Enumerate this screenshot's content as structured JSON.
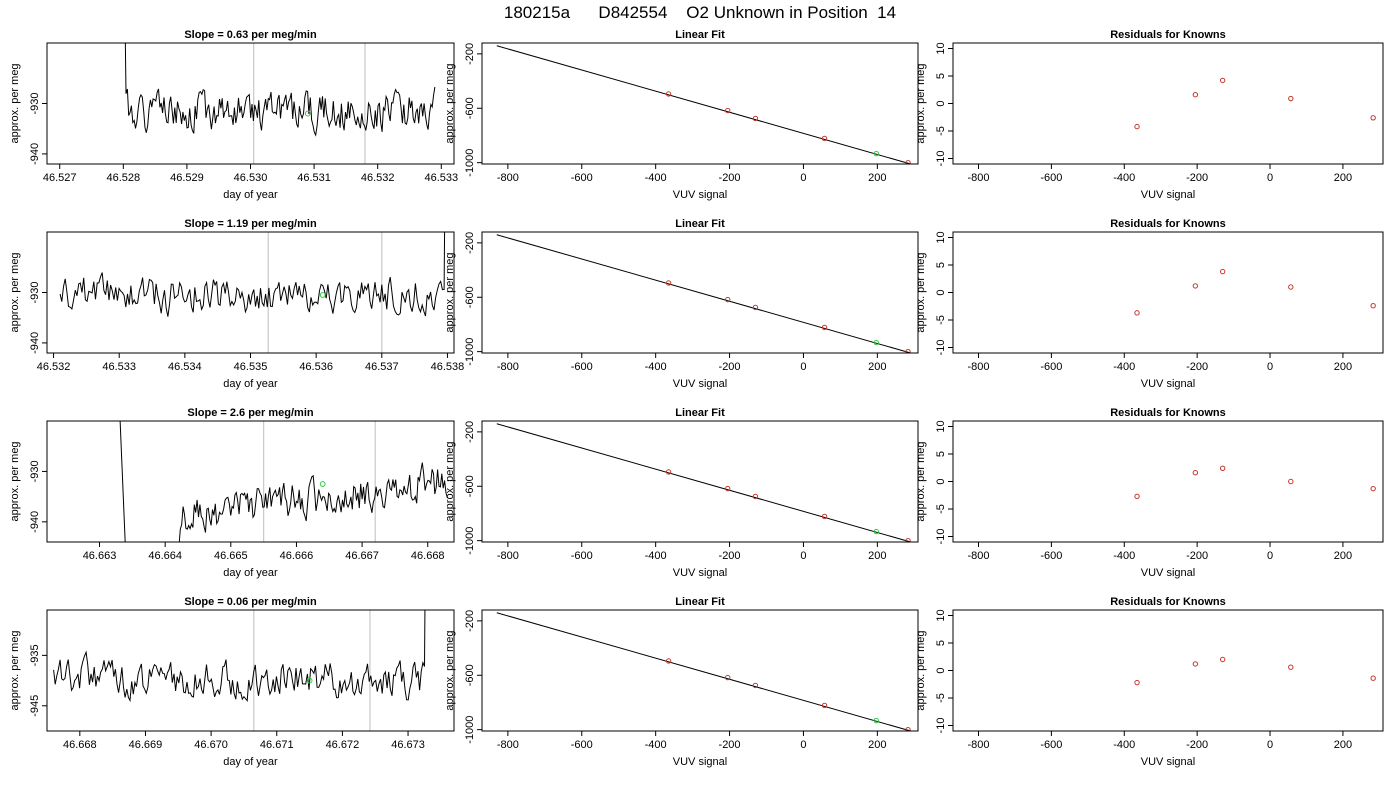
{
  "page_title": "180215a      D842554    O2 Unknown in Position  14",
  "colors": {
    "trace": "#000000",
    "grid_vline": "#c8c8c8",
    "known_point": "#c0392b",
    "unknown_point": "#2ecc40"
  },
  "chart_data": [
    {
      "type": "line",
      "row": 0,
      "col": 0,
      "title": "Slope =  0.63  per meg/min",
      "xlabel": "day of year",
      "ylabel": "approx. per meg",
      "xlim": [
        46.5268,
        46.5332
      ],
      "ylim": [
        -942,
        -918
      ],
      "xticks": [
        "46.527",
        "46.528",
        "46.529",
        "46.530",
        "46.531",
        "46.532",
        "46.533"
      ],
      "xtick_values": [
        46.527,
        46.528,
        46.529,
        46.53,
        46.531,
        46.532,
        46.533
      ],
      "yticks": [
        "-940",
        "-930"
      ],
      "ytick_values": [
        -940,
        -930
      ],
      "vlines": [
        46.53005,
        46.5318
      ],
      "trace": {
        "x_start": 46.528,
        "x_end": 46.5329,
        "base": -932,
        "amp": 4.5,
        "seed": 1,
        "trend": 0.8,
        "spike": "start"
      },
      "green_point": {
        "x": 46.5309,
        "y": -932
      }
    },
    {
      "type": "scatter",
      "row": 0,
      "col": 1,
      "title": "Linear Fit",
      "xlabel": "VUV signal",
      "ylabel": "approx. per meg",
      "xlim": [
        -870,
        310
      ],
      "ylim": [
        -1010,
        -120
      ],
      "xticks": [
        "-800",
        "-600",
        "-400",
        "-200",
        "0",
        "200"
      ],
      "xtick_values": [
        -800,
        -600,
        -400,
        -200,
        0,
        200
      ],
      "yticks": [
        "-1000",
        "-600",
        "-200"
      ],
      "ytick_values": [
        -1000,
        -600,
        -200
      ],
      "line": [
        [
          -830,
          -140
        ],
        [
          290,
          -1010
        ]
      ],
      "known_points": [
        [
          -365,
          -495
        ],
        [
          -205,
          -617
        ],
        [
          -130,
          -675
        ],
        [
          57,
          -822
        ],
        [
          283,
          -1000
        ]
      ],
      "unknown_points": [
        [
          197,
          -933
        ]
      ]
    },
    {
      "type": "scatter",
      "row": 0,
      "col": 2,
      "title": "Residuals for Knowns",
      "xlabel": "VUV signal",
      "ylabel": "approx. per meg",
      "xlim": [
        -870,
        310
      ],
      "ylim": [
        -11,
        11
      ],
      "xticks": [
        "-800",
        "-600",
        "-400",
        "-200",
        "0",
        "200"
      ],
      "xtick_values": [
        -800,
        -600,
        -400,
        -200,
        0,
        200
      ],
      "yticks": [
        "-10",
        "-5",
        "0",
        "5",
        "10"
      ],
      "ytick_values": [
        -10,
        -5,
        0,
        5,
        10
      ],
      "known_points": [
        [
          -365,
          -4.2
        ],
        [
          -205,
          1.6
        ],
        [
          -130,
          4.2
        ],
        [
          57,
          0.9
        ],
        [
          283,
          -2.6
        ]
      ]
    },
    {
      "type": "line",
      "row": 1,
      "col": 0,
      "title": "Slope =  1.19  per meg/min",
      "xlabel": "day of year",
      "ylabel": "approx. per meg",
      "xlim": [
        46.5319,
        46.5381
      ],
      "ylim": [
        -942,
        -918
      ],
      "xticks": [
        "46.532",
        "46.533",
        "46.534",
        "46.535",
        "46.536",
        "46.537",
        "46.538"
      ],
      "xtick_values": [
        46.532,
        46.533,
        46.534,
        46.535,
        46.536,
        46.537,
        46.538
      ],
      "yticks": [
        "-940",
        "-930"
      ],
      "ytick_values": [
        -940,
        -930
      ],
      "vlines": [
        46.53527,
        46.537
      ],
      "trace": {
        "x_start": 46.5321,
        "x_end": 46.538,
        "base": -930.5,
        "amp": 4.5,
        "seed": 2,
        "trend": 0.3,
        "spike": "end"
      },
      "green_point": {
        "x": 46.5361,
        "y": -930.5
      }
    },
    {
      "type": "scatter",
      "row": 1,
      "col": 1,
      "title": "Linear Fit",
      "xlabel": "VUV signal",
      "ylabel": "approx. per meg",
      "xlim": [
        -870,
        310
      ],
      "ylim": [
        -1010,
        -120
      ],
      "xticks": [
        "-800",
        "-600",
        "-400",
        "-200",
        "0",
        "200"
      ],
      "xtick_values": [
        -800,
        -600,
        -400,
        -200,
        0,
        200
      ],
      "yticks": [
        "-1000",
        "-600",
        "-200"
      ],
      "ytick_values": [
        -1000,
        -600,
        -200
      ],
      "line": [
        [
          -830,
          -140
        ],
        [
          290,
          -1010
        ]
      ],
      "known_points": [
        [
          -365,
          -495
        ],
        [
          -205,
          -617
        ],
        [
          -130,
          -675
        ],
        [
          57,
          -822
        ],
        [
          283,
          -1000
        ]
      ],
      "unknown_points": [
        [
          197,
          -933
        ]
      ]
    },
    {
      "type": "scatter",
      "row": 1,
      "col": 2,
      "title": "Residuals for Knowns",
      "xlabel": "VUV signal",
      "ylabel": "approx. per meg",
      "xlim": [
        -870,
        310
      ],
      "ylim": [
        -11,
        11
      ],
      "xticks": [
        "-800",
        "-600",
        "-400",
        "-200",
        "0",
        "200"
      ],
      "xtick_values": [
        -800,
        -600,
        -400,
        -200,
        0,
        200
      ],
      "yticks": [
        "-10",
        "-5",
        "0",
        "5",
        "10"
      ],
      "ytick_values": [
        -10,
        -5,
        0,
        5,
        10
      ],
      "known_points": [
        [
          -365,
          -3.7
        ],
        [
          -205,
          1.2
        ],
        [
          -130,
          3.8
        ],
        [
          57,
          1.0
        ],
        [
          283,
          -2.4
        ]
      ]
    },
    {
      "type": "line",
      "row": 2,
      "col": 0,
      "title": "Slope =  2.6  per meg/min",
      "xlabel": "day of year",
      "ylabel": "approx. per meg",
      "xlim": [
        46.6622,
        46.6684
      ],
      "ylim": [
        -944,
        -920
      ],
      "xticks": [
        "46.663",
        "46.664",
        "46.665",
        "46.666",
        "46.667",
        "46.668"
      ],
      "xtick_values": [
        46.663,
        46.664,
        46.665,
        46.666,
        46.667,
        46.668
      ],
      "yticks": [
        "-940",
        "-930"
      ],
      "ytick_values": [
        -940,
        -930
      ],
      "vlines": [
        46.6655,
        46.6672
      ],
      "trace": {
        "x_start": 46.6634,
        "x_end": 46.6683,
        "base": -940,
        "amp": 4.5,
        "seed": 3,
        "trend": 8,
        "spike": "start-down"
      },
      "green_point": {
        "x": 46.6664,
        "y": -932.5
      }
    },
    {
      "type": "scatter",
      "row": 2,
      "col": 1,
      "title": "Linear Fit",
      "xlabel": "VUV signal",
      "ylabel": "approx. per meg",
      "xlim": [
        -870,
        310
      ],
      "ylim": [
        -1010,
        -120
      ],
      "xticks": [
        "-800",
        "-600",
        "-400",
        "-200",
        "0",
        "200"
      ],
      "xtick_values": [
        -800,
        -600,
        -400,
        -200,
        0,
        200
      ],
      "yticks": [
        "-1000",
        "-600",
        "-200"
      ],
      "ytick_values": [
        -1000,
        -600,
        -200
      ],
      "line": [
        [
          -830,
          -140
        ],
        [
          290,
          -1010
        ]
      ],
      "known_points": [
        [
          -365,
          -495
        ],
        [
          -205,
          -617
        ],
        [
          -130,
          -675
        ],
        [
          57,
          -822
        ],
        [
          283,
          -1000
        ]
      ],
      "unknown_points": [
        [
          197,
          -933
        ]
      ]
    },
    {
      "type": "scatter",
      "row": 2,
      "col": 2,
      "title": "Residuals for Knowns",
      "xlabel": "VUV signal",
      "ylabel": "approx. per meg",
      "xlim": [
        -870,
        310
      ],
      "ylim": [
        -11,
        11
      ],
      "xticks": [
        "-800",
        "-600",
        "-400",
        "-200",
        "0",
        "200"
      ],
      "xtick_values": [
        -800,
        -600,
        -400,
        -200,
        0,
        200
      ],
      "yticks": [
        "-10",
        "-5",
        "0",
        "5",
        "10"
      ],
      "ytick_values": [
        -10,
        -5,
        0,
        5,
        10
      ],
      "known_points": [
        [
          -365,
          -2.7
        ],
        [
          -205,
          1.6
        ],
        [
          -130,
          2.4
        ],
        [
          57,
          0.0
        ],
        [
          283,
          -1.3
        ]
      ]
    },
    {
      "type": "line",
      "row": 3,
      "col": 0,
      "title": "Slope =  0.06  per meg/min",
      "xlabel": "day of year",
      "ylabel": "approx. per meg",
      "xlim": [
        46.6675,
        46.6737
      ],
      "ylim": [
        -950,
        -926
      ],
      "xticks": [
        "46.668",
        "46.669",
        "46.670",
        "46.671",
        "46.672",
        "46.673"
      ],
      "xtick_values": [
        46.668,
        46.669,
        46.67,
        46.671,
        46.672,
        46.673
      ],
      "yticks": [
        "-945",
        "-935"
      ],
      "ytick_values": [
        -945,
        -935
      ],
      "vlines": [
        46.67065,
        46.67242
      ],
      "trace": {
        "x_start": 46.6676,
        "x_end": 46.6733,
        "base": -939,
        "amp": 4.5,
        "seed": 4,
        "trend": -1,
        "spike": "end"
      },
      "green_point": {
        "x": 46.6715,
        "y": -940
      }
    },
    {
      "type": "scatter",
      "row": 3,
      "col": 1,
      "title": "Linear Fit",
      "xlabel": "VUV signal",
      "ylabel": "approx. per meg",
      "xlim": [
        -870,
        310
      ],
      "ylim": [
        -1010,
        -120
      ],
      "xticks": [
        "-800",
        "-600",
        "-400",
        "-200",
        "0",
        "200"
      ],
      "xtick_values": [
        -800,
        -600,
        -400,
        -200,
        0,
        200
      ],
      "yticks": [
        "-1000",
        "-600",
        "-200"
      ],
      "ytick_values": [
        -1000,
        -600,
        -200
      ],
      "line": [
        [
          -830,
          -140
        ],
        [
          290,
          -1010
        ]
      ],
      "known_points": [
        [
          -365,
          -495
        ],
        [
          -205,
          -617
        ],
        [
          -130,
          -675
        ],
        [
          57,
          -822
        ],
        [
          283,
          -1000
        ]
      ],
      "unknown_points": [
        [
          197,
          -933
        ]
      ]
    },
    {
      "type": "scatter",
      "row": 3,
      "col": 2,
      "title": "Residuals for Knowns",
      "xlabel": "VUV signal",
      "ylabel": "approx. per meg",
      "xlim": [
        -870,
        310
      ],
      "ylim": [
        -11,
        11
      ],
      "xticks": [
        "-800",
        "-600",
        "-400",
        "-200",
        "0",
        "200"
      ],
      "xtick_values": [
        -800,
        -600,
        -400,
        -200,
        0,
        200
      ],
      "yticks": [
        "-10",
        "-5",
        "0",
        "5",
        "10"
      ],
      "ytick_values": [
        -10,
        -5,
        0,
        5,
        10
      ],
      "known_points": [
        [
          -365,
          -2.2
        ],
        [
          -205,
          1.2
        ],
        [
          -130,
          2.0
        ],
        [
          57,
          0.6
        ],
        [
          283,
          -1.4
        ]
      ]
    }
  ]
}
